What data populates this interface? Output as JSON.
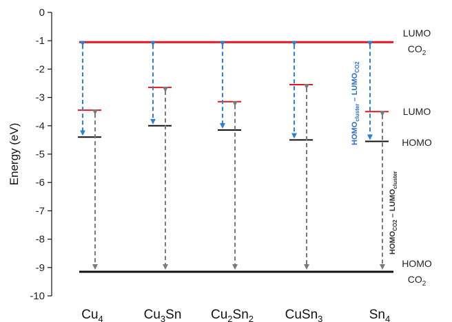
{
  "chart_data": {
    "type": "energy-level diagram",
    "ylabel": "Energy (eV)",
    "ylim": [
      -10,
      0
    ],
    "yticks": [
      "0",
      "-1",
      "-2",
      "-3",
      "-4",
      "-5",
      "-6",
      "-7",
      "-8",
      "-9",
      "-10"
    ],
    "categories": [
      {
        "base": "Cu",
        "sub": "4",
        "base2": "",
        "sub2": ""
      },
      {
        "base": "Cu",
        "sub": "3",
        "base2": "Sn",
        "sub2": ""
      },
      {
        "base": "Cu",
        "sub": "2",
        "base2": "Sn",
        "sub2": "2"
      },
      {
        "base": "CuSn",
        "sub": "3",
        "base2": "",
        "sub2": ""
      },
      {
        "base": "Sn",
        "sub": "4",
        "base2": "",
        "sub2": ""
      }
    ],
    "cluster_homo": [
      -4.4,
      -4.0,
      -4.15,
      -4.5,
      -4.55
    ],
    "cluster_lumo": [
      -3.45,
      -2.65,
      -3.15,
      -2.55,
      -3.5
    ],
    "co2_lumo": -1.05,
    "co2_homo": -9.15,
    "side_labels": {
      "lumo_co2": [
        "LUMO",
        "CO",
        "2"
      ],
      "lumo": "LUMO",
      "homo": "HOMO",
      "homo_co2": [
        "HOMO",
        "CO",
        "2"
      ]
    },
    "annotations": {
      "blue": {
        "a": "HOMO",
        "a_sub": "cluster",
        "mid": " – LUMO",
        "b_sub": "CO2"
      },
      "gray": {
        "a": "HOMO",
        "a_sub": "CO2",
        "mid": " – LUMO",
        "b_sub": "cluster"
      }
    },
    "colors": {
      "lumo_line": "#e8141b",
      "homo_line": "#111111",
      "blue_arrow": "#2f7fce",
      "gray_arrow": "#7a7a7a",
      "blue_text": "#2a6fc0",
      "gray_text": "#333333"
    }
  }
}
